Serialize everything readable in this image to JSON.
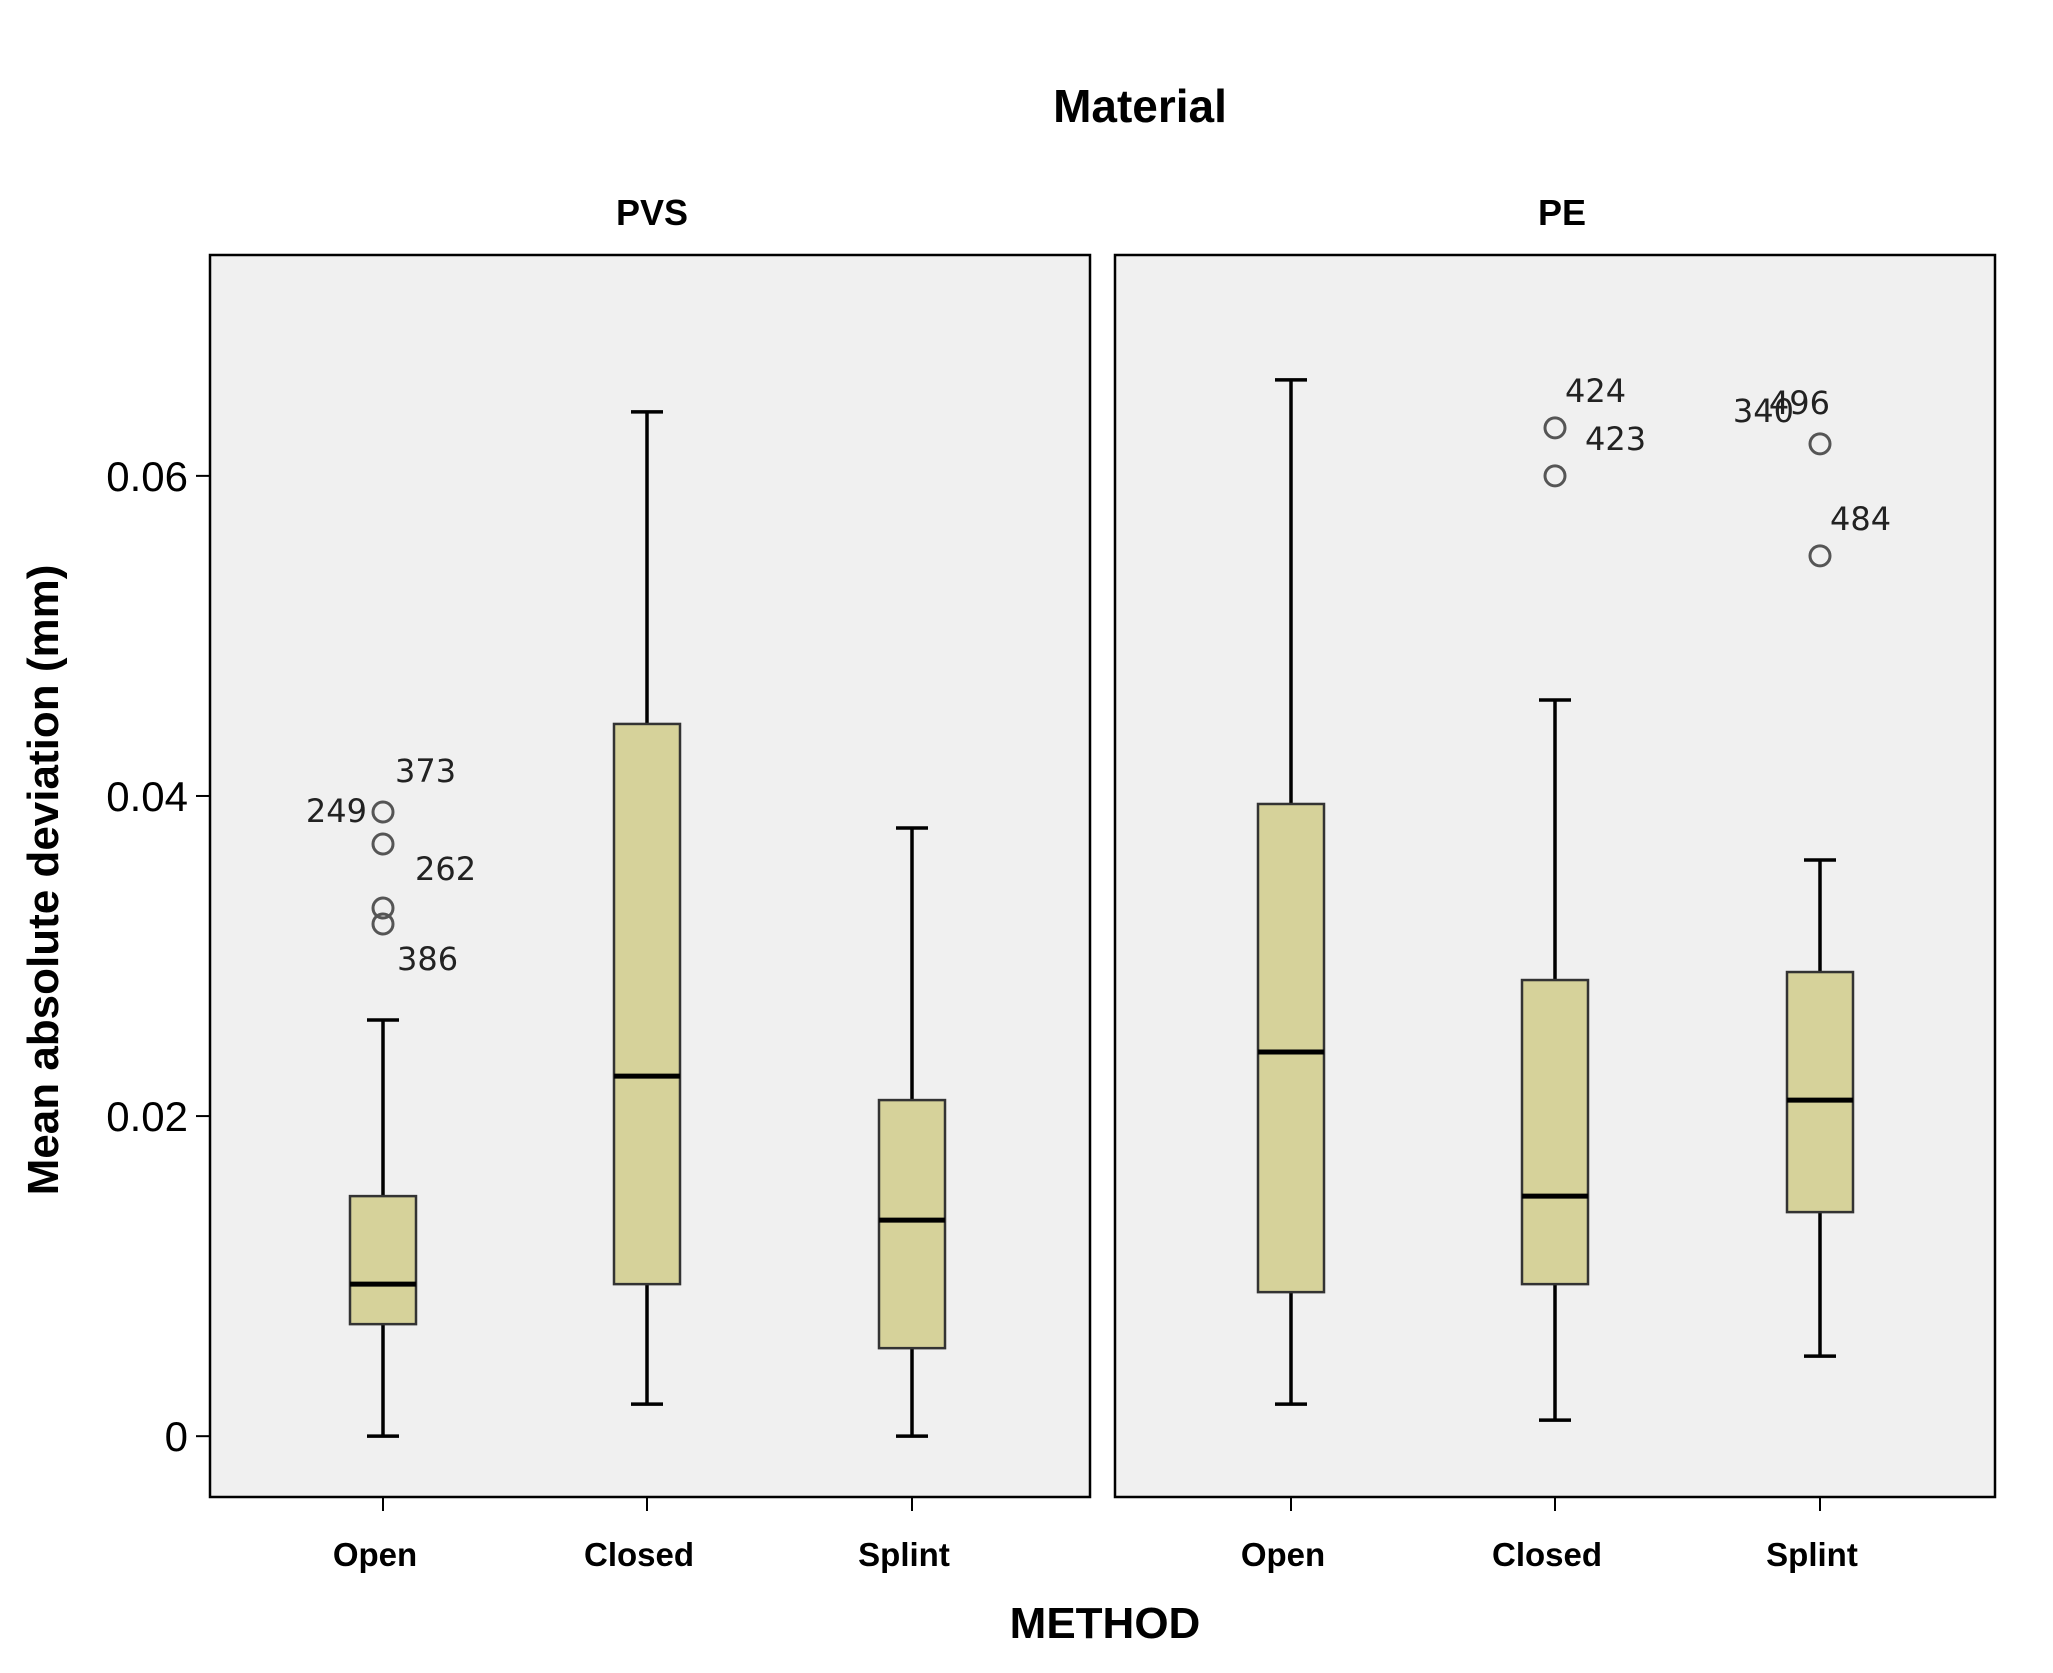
{
  "chart_data": {
    "type": "boxplot",
    "title": "Material",
    "xlabel": "METHOD",
    "ylabel": "Mean absolute deviation (mm)",
    "ylim": [
      -0.0038,
      0.0738
    ],
    "yticks": [
      0,
      0.02,
      0.04,
      0.06
    ],
    "ytick_labels": [
      "0",
      "0.02",
      "0.04",
      "0.06"
    ],
    "categories": [
      "Open",
      "Closed",
      "Splint"
    ],
    "colors": {
      "box_fill": "#d6d29a",
      "panel_bg": "#f0f0f0",
      "stroke": "#000000",
      "outlier": "#555555"
    },
    "panels": [
      {
        "name": "PVS",
        "boxes": [
          {
            "category": "Open",
            "min": 0.0,
            "q1": 0.007,
            "median": 0.0095,
            "q3": 0.015,
            "max": 0.026,
            "outliers": [
              {
                "value": 0.039,
                "label": "373"
              },
              {
                "value": 0.039,
                "label": "249"
              },
              {
                "value": 0.037,
                "label": ""
              },
              {
                "value": 0.033,
                "label": "262"
              },
              {
                "value": 0.032,
                "label": "386"
              }
            ]
          },
          {
            "category": "Closed",
            "min": 0.002,
            "q1": 0.0095,
            "median": 0.0225,
            "q3": 0.0445,
            "max": 0.064,
            "outliers": []
          },
          {
            "category": "Splint",
            "min": 0.0,
            "q1": 0.0055,
            "median": 0.0135,
            "q3": 0.021,
            "max": 0.038,
            "outliers": []
          }
        ]
      },
      {
        "name": "PE",
        "boxes": [
          {
            "category": "Open",
            "min": 0.002,
            "q1": 0.009,
            "median": 0.024,
            "q3": 0.0395,
            "max": 0.066,
            "outliers": []
          },
          {
            "category": "Closed",
            "min": 0.001,
            "q1": 0.0095,
            "median": 0.015,
            "q3": 0.0285,
            "max": 0.046,
            "outliers": [
              {
                "value": 0.063,
                "label": "424"
              },
              {
                "value": 0.06,
                "label": "423"
              }
            ]
          },
          {
            "category": "Splint",
            "min": 0.005,
            "q1": 0.014,
            "median": 0.021,
            "q3": 0.029,
            "max": 0.036,
            "outliers": [
              {
                "value": 0.062,
                "label": "340"
              },
              {
                "value": 0.062,
                "label": "496"
              },
              {
                "value": 0.055,
                "label": "484"
              }
            ]
          }
        ]
      }
    ]
  }
}
